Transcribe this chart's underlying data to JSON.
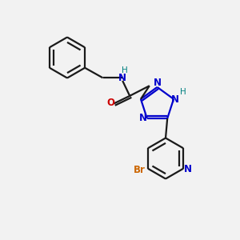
{
  "bg_color": "#f2f2f2",
  "bond_color": "#1a1a1a",
  "N_color": "#0000cc",
  "O_color": "#cc0000",
  "Br_color": "#cc6600",
  "H_color": "#008080",
  "lw": 1.6,
  "figsize": [
    3.0,
    3.0
  ],
  "dpi": 100,
  "xlim": [
    0,
    10
  ],
  "ylim": [
    0,
    10
  ]
}
